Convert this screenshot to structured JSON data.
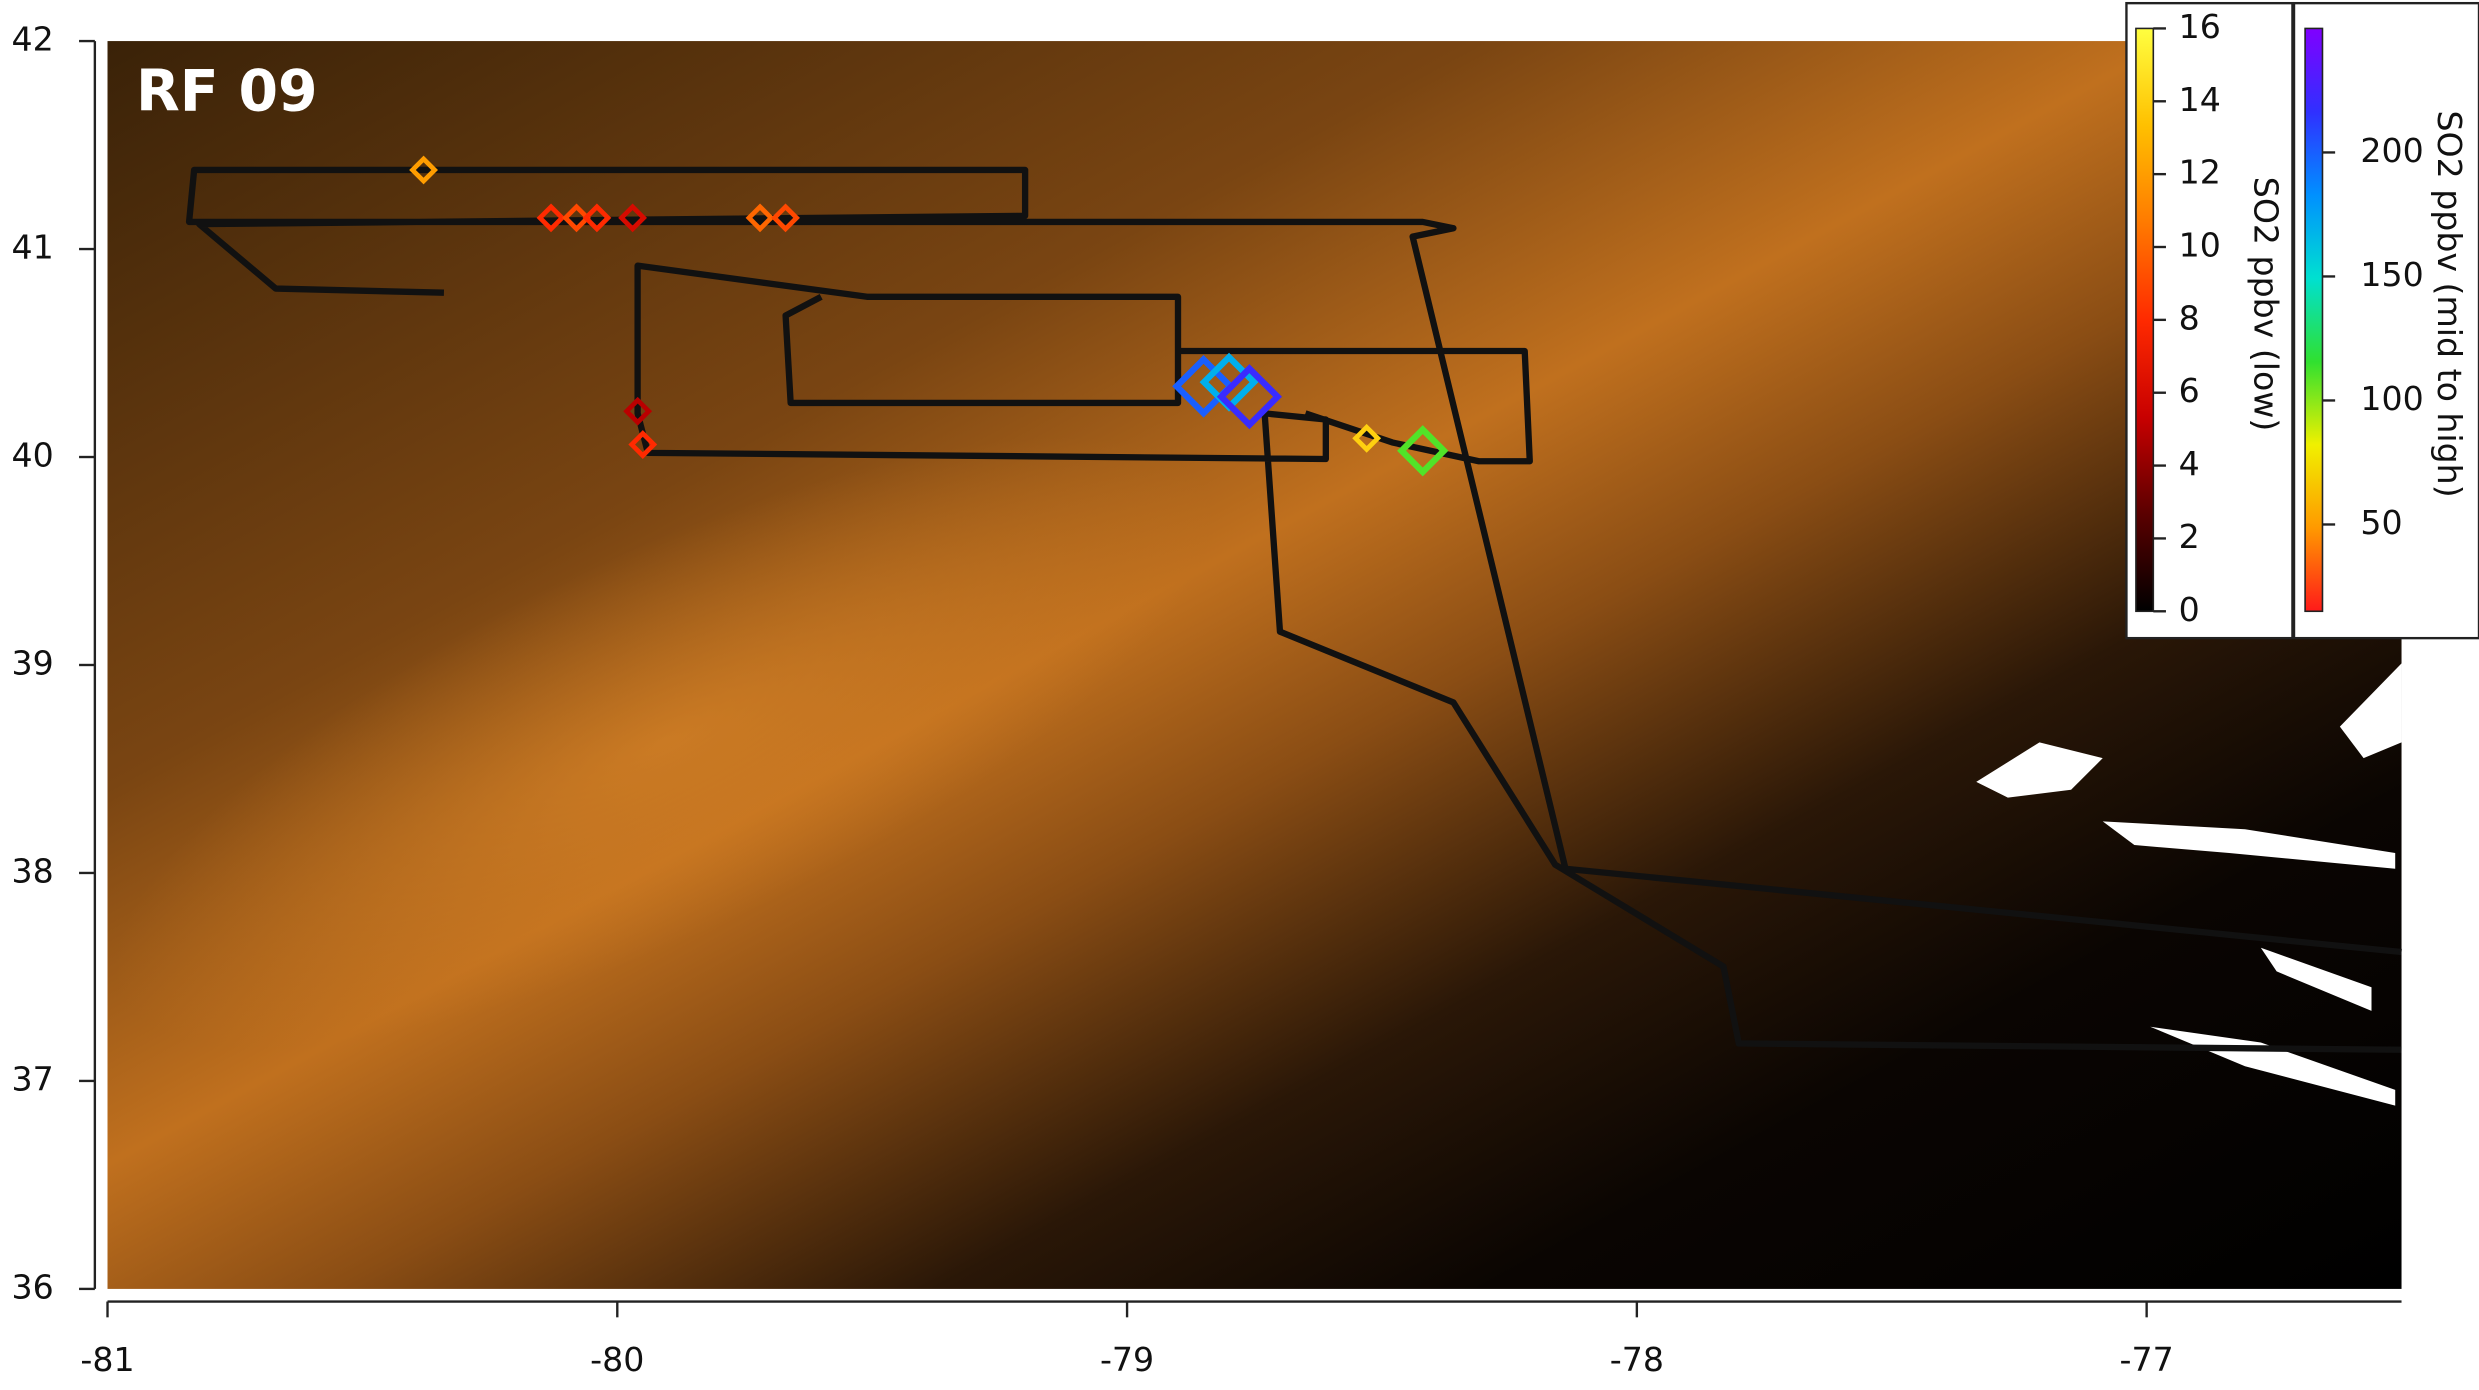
{
  "chart_data": {
    "type": "map",
    "title": "RF 09",
    "xlim": [
      -81,
      -76.5
    ],
    "ylim": [
      36,
      42
    ],
    "xticks": [
      -81,
      -80,
      -79,
      -78,
      -77
    ],
    "yticks": [
      36,
      37,
      38,
      39,
      40,
      41,
      42
    ],
    "track": {
      "color": "#111111",
      "x": [
        -76.5,
        -77.8,
        -77.83,
        -78.16,
        -78.36,
        -78.7,
        -78.73,
        -78.61,
        -78.61,
        -79.94,
        -79.96,
        -79.96,
        -79.51,
        -78.9,
        -78.9,
        -79.66,
        -79.67,
        -79.6,
        null,
        -78.9,
        -78.22,
        -78.21,
        -78.31,
        -78.48,
        -78.65,
        null,
        -76.5,
        -78.14,
        -78.44,
        -78.36,
        -78.42,
        -80.84,
        -80.83,
        -79.2,
        -79.2,
        -80.82,
        -80.67,
        -80.34
      ],
      "y": [
        37.15,
        37.18,
        37.55,
        38.04,
        38.82,
        39.16,
        40.21,
        40.18,
        39.99,
        40.02,
        40.21,
        40.92,
        40.77,
        40.77,
        40.26,
        40.26,
        40.68,
        40.77,
        null,
        40.51,
        40.51,
        39.98,
        39.98,
        40.07,
        40.21,
        null,
        37.62,
        38.02,
        41.06,
        41.1,
        41.13,
        41.13,
        41.38,
        41.38,
        41.16,
        41.12,
        40.81,
        40.79
      ]
    },
    "colorbars": [
      {
        "label": "SO2 ppbv (low)",
        "lim": [
          0,
          16
        ],
        "ticks": [
          0,
          2,
          4,
          6,
          8,
          10,
          12,
          14,
          16
        ],
        "colors": [
          "#000000",
          "#5a0000",
          "#c80000",
          "#ff2a00",
          "#ff7a00",
          "#ffc000",
          "#ffff40"
        ],
        "markers": {
          "x": [
            -80.38,
            -80.13,
            -80.08,
            -80.04,
            -79.97,
            -79.72,
            -79.67,
            -79.96,
            -79.95,
            -78.53
          ],
          "y": [
            41.38,
            41.15,
            41.15,
            41.15,
            41.15,
            41.15,
            41.15,
            40.22,
            40.06,
            40.09
          ],
          "values": [
            12,
            8,
            9,
            8,
            6,
            10,
            9,
            5,
            8,
            14
          ]
        }
      },
      {
        "label": "SO2 ppbv (mid to high)",
        "lim": [
          15,
          250
        ],
        "ticks": [
          50,
          100,
          150,
          200
        ],
        "colors": [
          "#ff1a1a",
          "#ff9900",
          "#f0f000",
          "#30e030",
          "#00e0d0",
          "#0090ff",
          "#3030ff",
          "#8000ff"
        ],
        "markers": {
          "x": [
            -78.85,
            -78.8,
            -78.76,
            -78.42
          ],
          "y": [
            40.34,
            40.36,
            40.29,
            40.03
          ],
          "values": [
            200,
            170,
            220,
            110
          ]
        }
      }
    ]
  }
}
